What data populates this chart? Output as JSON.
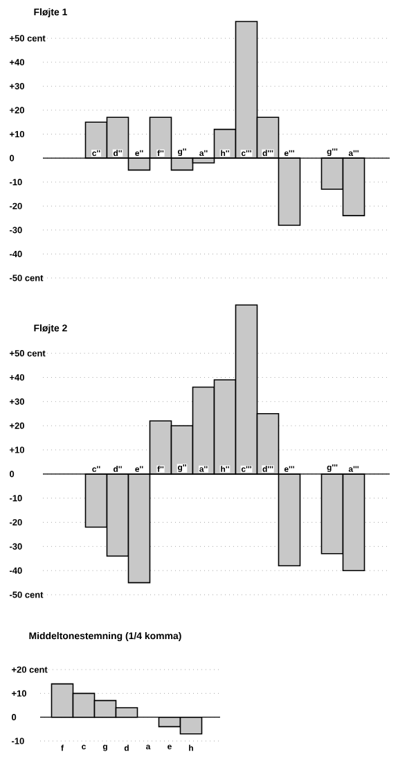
{
  "chart_data": [
    {
      "type": "bar",
      "title": "Fløjte 1",
      "categories": [
        "c''",
        "d''",
        "e''",
        "f''",
        "g''",
        "a''",
        "h''",
        "c'''",
        "d'''",
        "e'''",
        null,
        "g'''",
        "a'''"
      ],
      "values": [
        15,
        17,
        -5,
        17,
        -5,
        -2,
        12,
        57,
        17,
        -28,
        null,
        -13,
        -24
      ],
      "color": "#c8c8c8",
      "ylim": [
        -50,
        57
      ],
      "yticks": [
        {
          "value": -50,
          "label": "-50 cent"
        },
        -40,
        -30,
        -20,
        -10,
        0,
        {
          "value": 10,
          "label": "+10"
        },
        {
          "value": 20,
          "label": "+20"
        },
        {
          "value": 30,
          "label": "+30"
        },
        {
          "value": 40,
          "label": "+40"
        },
        {
          "value": 50,
          "label": "+50 cent"
        }
      ],
      "grid": "y"
    },
    {
      "type": "bar",
      "title": "Fløjte 2",
      "categories": [
        "c''",
        "d''",
        "e''",
        "f''",
        "g''",
        "a''",
        "h''",
        "c'''",
        "d'''",
        "e'''",
        null,
        "g'''",
        "a'''"
      ],
      "values": [
        -22,
        -34,
        -45,
        22,
        20,
        36,
        39,
        70,
        25,
        -38,
        null,
        -33,
        -40
      ],
      "color": "#c8c8c8",
      "ylim": [
        -50,
        70
      ],
      "yticks": [
        {
          "value": -50,
          "label": "-50 cent"
        },
        -40,
        -30,
        -20,
        -10,
        0,
        {
          "value": 10,
          "label": "+10"
        },
        {
          "value": 20,
          "label": "+20"
        },
        {
          "value": 30,
          "label": "+30"
        },
        {
          "value": 40,
          "label": "+40"
        },
        {
          "value": 50,
          "label": "+50 cent"
        }
      ],
      "grid": "y"
    },
    {
      "type": "bar",
      "title": "Middeltonestemning (1/4 komma)",
      "categories": [
        "f",
        "c",
        "g",
        "d",
        "a",
        "e",
        "h"
      ],
      "values": [
        14,
        10,
        7,
        4,
        0,
        -4,
        -7
      ],
      "color": "#c8c8c8",
      "ylim": [
        -10,
        20
      ],
      "yticks": [
        -10,
        0,
        {
          "value": 10,
          "label": "+10"
        },
        {
          "value": 20,
          "label": "+20 cent"
        }
      ],
      "grid": "y"
    }
  ]
}
